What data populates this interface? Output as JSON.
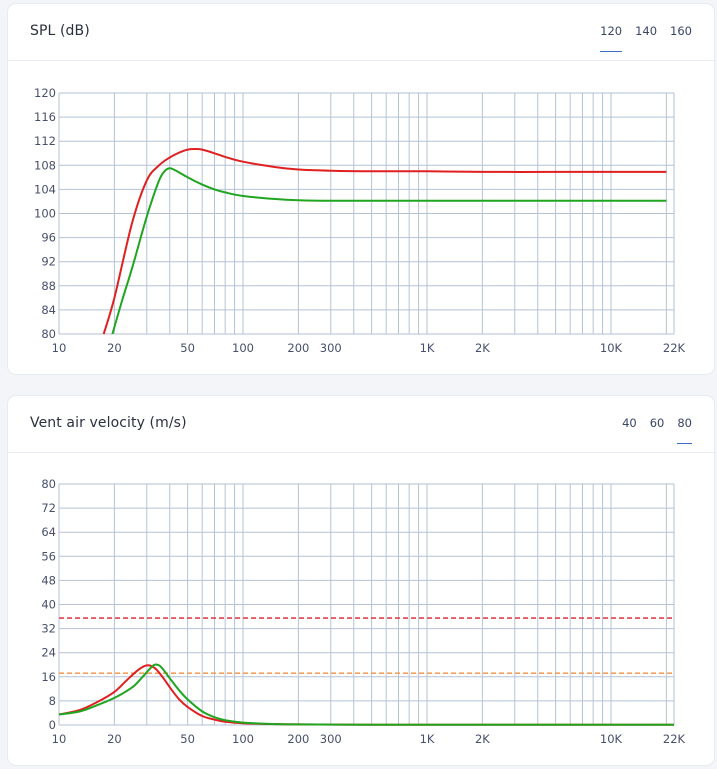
{
  "charts": [
    {
      "title": "SPL (dB)",
      "tabs": [
        "120",
        "140",
        "160"
      ],
      "active_tab": "120"
    },
    {
      "title": "Vent air velocity (m/s)",
      "tabs": [
        "40",
        "60",
        "80"
      ],
      "active_tab": "80"
    }
  ],
  "chart_data": [
    {
      "type": "line",
      "title": "SPL (dB)",
      "xscale": "log",
      "xlim": [
        10,
        22000
      ],
      "ylim": [
        80,
        120
      ],
      "grid": true,
      "x_ticks": [
        {
          "value": 10,
          "label": "10"
        },
        {
          "value": 20,
          "label": "20"
        },
        {
          "value": 50,
          "label": "50"
        },
        {
          "value": 100,
          "label": "100"
        },
        {
          "value": 200,
          "label": "200"
        },
        {
          "value": 300,
          "label": "300"
        },
        {
          "value": 1000,
          "label": "1K"
        },
        {
          "value": 2000,
          "label": "2K"
        },
        {
          "value": 10000,
          "label": "10K"
        },
        {
          "value": 22000,
          "label": "22K"
        }
      ],
      "y_ticks": [
        80,
        84,
        88,
        92,
        96,
        100,
        104,
        108,
        112,
        116,
        120
      ],
      "series": [
        {
          "color": "#e02020",
          "style": "solid",
          "x": [
            17.5,
            20,
            25,
            30,
            35,
            40,
            45,
            50,
            55,
            60,
            70,
            80,
            100,
            150,
            200,
            300,
            500,
            1000,
            2000,
            5000,
            10000,
            20000
          ],
          "y": [
            80,
            86,
            98.5,
            105.5,
            108,
            109.3,
            110.1,
            110.6,
            110.7,
            110.6,
            110,
            109.4,
            108.6,
            107.7,
            107.3,
            107.1,
            107,
            107,
            106.9,
            106.9,
            106.9,
            106.9
          ]
        },
        {
          "color": "#1fa51f",
          "style": "solid",
          "x": [
            19.5,
            22,
            25,
            30,
            35,
            38,
            40,
            42,
            45,
            50,
            60,
            70,
            80,
            100,
            150,
            200,
            300,
            500,
            1000,
            5000,
            20000
          ],
          "y": [
            80,
            85.5,
            91,
            99.5,
            105.5,
            107.2,
            107.5,
            107.3,
            106.8,
            106,
            104.8,
            104,
            103.5,
            102.9,
            102.4,
            102.2,
            102.1,
            102.1,
            102.1,
            102.1,
            102.1
          ]
        }
      ]
    },
    {
      "type": "line",
      "title": "Vent air velocity (m/s)",
      "xscale": "log",
      "xlim": [
        10,
        22000
      ],
      "ylim": [
        0,
        80
      ],
      "grid": true,
      "x_ticks": [
        {
          "value": 10,
          "label": "10"
        },
        {
          "value": 20,
          "label": "20"
        },
        {
          "value": 50,
          "label": "50"
        },
        {
          "value": 100,
          "label": "100"
        },
        {
          "value": 200,
          "label": "200"
        },
        {
          "value": 300,
          "label": "300"
        },
        {
          "value": 1000,
          "label": "1K"
        },
        {
          "value": 2000,
          "label": "2K"
        },
        {
          "value": 10000,
          "label": "10K"
        },
        {
          "value": 22000,
          "label": "22K"
        }
      ],
      "y_ticks": [
        0,
        8,
        16,
        24,
        32,
        40,
        48,
        56,
        64,
        72,
        80
      ],
      "reference_lines": [
        {
          "y": 35.5,
          "color": "#e0434f",
          "style": "dashed"
        },
        {
          "y": 17.2,
          "color": "#f5a05a",
          "style": "dashed"
        }
      ],
      "series": [
        {
          "color": "#e02020",
          "style": "solid",
          "x": [
            10,
            13,
            16,
            20,
            23,
            26,
            28,
            30,
            32,
            34,
            37,
            40,
            45,
            50,
            60,
            70,
            80,
            100,
            150,
            200,
            500,
            1000,
            22000
          ],
          "y": [
            3.5,
            5,
            7.5,
            11,
            14.5,
            17.5,
            19,
            19.8,
            19.5,
            18.3,
            15.5,
            12.5,
            8.5,
            6,
            3,
            1.8,
            1.1,
            0.6,
            0.3,
            0.2,
            0.1,
            0.1,
            0.1
          ]
        },
        {
          "color": "#1fa51f",
          "style": "solid",
          "x": [
            10,
            13,
            16,
            20,
            25,
            28,
            31,
            33,
            35,
            37,
            40,
            45,
            50,
            60,
            70,
            80,
            100,
            150,
            200,
            500,
            1000,
            22000
          ],
          "y": [
            3.5,
            4.5,
            6.5,
            9,
            12.5,
            15.5,
            18.5,
            20,
            19.8,
            18.3,
            15.5,
            11.5,
            8.5,
            4.5,
            2.6,
            1.6,
            0.8,
            0.3,
            0.2,
            0.1,
            0.1,
            0.1
          ]
        }
      ]
    }
  ]
}
